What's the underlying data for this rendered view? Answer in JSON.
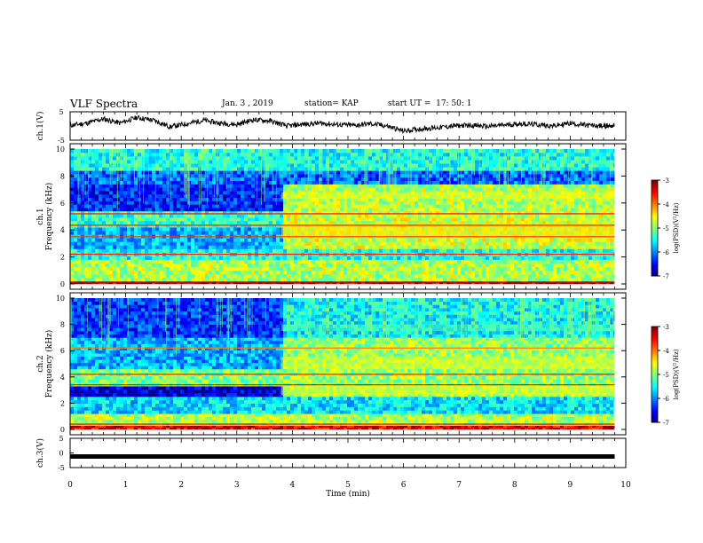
{
  "header": {
    "title": "VLF Spectra",
    "date": "Jan. 3 , 2019",
    "station": "station= KAP",
    "start": "start UT =  17: 50: 1"
  },
  "chart_data": [
    {
      "type": "line",
      "name": "ch1-waveform",
      "ylabel": "ch.1(V)",
      "ylim": [
        -5,
        5
      ],
      "yticks": [
        "5",
        "-5"
      ],
      "xlim": [
        0,
        10
      ],
      "x": [
        0,
        0.3,
        0.6,
        0.9,
        1.2,
        1.5,
        1.8,
        2.1,
        2.4,
        2.7,
        3.0,
        3.3,
        3.6,
        3.9,
        4.2,
        4.5,
        4.8,
        5.1,
        5.4,
        5.7,
        6.0,
        6.3,
        6.6,
        6.9,
        7.2,
        7.5,
        7.8,
        8.1,
        8.4,
        8.7,
        9.0,
        9.3,
        9.6,
        9.8
      ],
      "y": [
        0.2,
        1.0,
        2.5,
        1.0,
        3.0,
        2.0,
        -0.3,
        0.8,
        2.0,
        1.0,
        0.5,
        2.2,
        1.8,
        0.0,
        0.6,
        1.0,
        0.5,
        0.2,
        0.8,
        0.0,
        -1.8,
        -1.0,
        -0.6,
        0.0,
        0.3,
        -0.2,
        0.3,
        0.8,
        0.5,
        0.0,
        1.0,
        0.2,
        0.0,
        0.1
      ]
    },
    {
      "type": "heatmap",
      "name": "ch1-spectrogram",
      "ylabel": "ch.1\nFrequency (kHz)",
      "ylim": [
        0,
        10
      ],
      "yticks": [
        "0",
        "2",
        "4",
        "6",
        "8",
        "10"
      ],
      "xlim": [
        0,
        9.8
      ],
      "colorbar": {
        "label": "log(PSD)(V²/Hz)",
        "range": [
          -7,
          -3
        ],
        "ticks": [
          "-3",
          "-4",
          "-5",
          "-6",
          "-7"
        ]
      },
      "bands": [
        {
          "f": [
            0,
            0.2
          ],
          "v": -3.3
        },
        {
          "f": [
            0.2,
            1.8
          ],
          "v": -4.8
        },
        {
          "f": [
            1.8,
            2.6
          ],
          "v": -5.4
        },
        {
          "f": [
            2.6,
            4.2
          ],
          "v": -5.8
        },
        {
          "f": [
            4.2,
            5.4
          ],
          "v": -5.3
        },
        {
          "f": [
            5.4,
            7.4
          ],
          "v": -6.4
        },
        {
          "f": [
            7.4,
            8.4
          ],
          "v": -6.1
        },
        {
          "f": [
            8.4,
            10
          ],
          "v": -5.4
        }
      ],
      "step_time": 3.8,
      "step_bands": [
        {
          "f": [
            3.4,
            4.5
          ],
          "v": -4.4
        },
        {
          "f": [
            6.3,
            6.8
          ],
          "v": -4.5
        }
      ],
      "lines": [
        {
          "f": 0.12,
          "v": -3.2
        },
        {
          "f": 2.2,
          "v": -3.6
        },
        {
          "f": 3.5,
          "v": -3.7
        },
        {
          "f": 4.35,
          "v": -3.6
        },
        {
          "f": 5.2,
          "v": -3.5
        }
      ]
    },
    {
      "type": "heatmap",
      "name": "ch2-spectrogram",
      "ylabel": "ch.2\nFrequency (kHz)",
      "ylim": [
        0,
        10
      ],
      "yticks": [
        "0",
        "2",
        "4",
        "6",
        "8",
        "10"
      ],
      "xlim": [
        0,
        9.8
      ],
      "colorbar": {
        "label": "log(PSD)(V²/Hz)",
        "range": [
          -7,
          -3
        ],
        "ticks": [
          "-3",
          "-4",
          "-5",
          "-6",
          "-7"
        ]
      },
      "bands": [
        {
          "f": [
            0,
            0.3
          ],
          "v": -3.4
        },
        {
          "f": [
            0.3,
            1.2
          ],
          "v": -4.8
        },
        {
          "f": [
            1.2,
            2.5
          ],
          "v": -5.6
        },
        {
          "f": [
            2.5,
            3.3
          ],
          "v": -6.7
        },
        {
          "f": [
            3.3,
            4.6
          ],
          "v": -5.0
        },
        {
          "f": [
            4.6,
            7.0
          ],
          "v": -5.8
        },
        {
          "f": [
            7.0,
            10
          ],
          "v": -6.3
        }
      ],
      "step_time": 3.8,
      "step_bands": [
        {
          "f": [
            2.6,
            3.4
          ],
          "v": -4.6
        },
        {
          "f": [
            4.6,
            5.5
          ],
          "v": -4.6
        },
        {
          "f": [
            7.5,
            8.0
          ],
          "v": -5.2
        }
      ],
      "lines": [
        {
          "f": 0.4,
          "v": -3.3
        },
        {
          "f": 3.4,
          "v": -3.5
        },
        {
          "f": 4.2,
          "v": -3.6
        },
        {
          "f": 6.2,
          "v": -4.0
        }
      ]
    },
    {
      "type": "line",
      "name": "ch3-waveform",
      "ylabel": "ch.3(V)",
      "ylim": [
        -5,
        5
      ],
      "yticks": [
        "5",
        "0",
        "-5"
      ],
      "xlim": [
        0,
        10
      ],
      "x": [
        0,
        9.8
      ],
      "y": [
        -1.2,
        -1.2
      ]
    }
  ],
  "xaxis": {
    "label": "Time (min)",
    "ticks": [
      "0",
      "1",
      "2",
      "3",
      "4",
      "5",
      "6",
      "7",
      "8",
      "9",
      "10"
    ]
  }
}
